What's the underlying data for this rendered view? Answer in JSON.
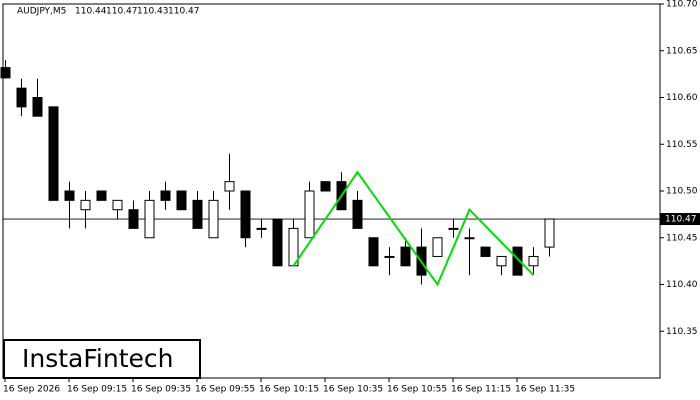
{
  "chart_data": {
    "type": "candlestick",
    "symbol": "AUDJPY,M5",
    "header_ohlc": [
      110.44,
      110.47,
      110.43,
      110.47
    ],
    "categories": [
      "16 Sep 2026",
      null,
      null,
      null,
      "16 Sep 09:15",
      null,
      null,
      null,
      "16 Sep 09:35",
      null,
      null,
      null,
      "16 Sep 09:55",
      null,
      null,
      null,
      "16 Sep 10:15",
      null,
      null,
      null,
      "16 Sep 10:35",
      null,
      null,
      null,
      "16 Sep 10:55",
      null,
      null,
      null,
      "16 Sep 11:15",
      null,
      null,
      null,
      "16 Sep 11:35",
      null,
      null
    ],
    "open": [
      110.632,
      110.61,
      110.6,
      110.59,
      110.5,
      110.48,
      110.5,
      110.48,
      110.48,
      110.45,
      110.5,
      110.5,
      110.49,
      110.45,
      110.5,
      110.5,
      110.46,
      110.47,
      110.42,
      110.45,
      110.51,
      110.51,
      110.49,
      110.45,
      110.43,
      110.44,
      110.44,
      110.43,
      110.46,
      110.45,
      110.44,
      110.42,
      110.44,
      110.42,
      110.44
    ],
    "high": [
      110.64,
      110.62,
      110.62,
      110.59,
      110.51,
      110.5,
      110.5,
      110.49,
      110.49,
      110.5,
      110.51,
      110.5,
      110.5,
      110.5,
      110.54,
      110.5,
      110.47,
      110.47,
      110.47,
      110.51,
      110.51,
      110.52,
      110.5,
      110.45,
      110.44,
      110.45,
      110.46,
      110.45,
      110.47,
      110.46,
      110.44,
      110.43,
      110.44,
      110.44,
      110.47
    ],
    "low": [
      110.62,
      110.58,
      110.58,
      110.49,
      110.46,
      110.46,
      110.49,
      110.47,
      110.46,
      110.45,
      110.48,
      110.48,
      110.46,
      110.45,
      110.48,
      110.44,
      110.45,
      110.42,
      110.42,
      110.45,
      110.5,
      110.48,
      110.46,
      110.42,
      110.41,
      110.42,
      110.4,
      110.43,
      110.45,
      110.41,
      110.43,
      110.41,
      110.41,
      110.41,
      110.43
    ],
    "close": [
      110.621,
      110.59,
      110.58,
      110.49,
      110.49,
      110.49,
      110.49,
      110.49,
      110.46,
      110.49,
      110.49,
      110.48,
      110.46,
      110.49,
      110.51,
      110.45,
      110.46,
      110.42,
      110.46,
      110.5,
      110.5,
      110.48,
      110.46,
      110.42,
      110.43,
      110.42,
      110.41,
      110.45,
      110.46,
      110.45,
      110.43,
      110.43,
      110.41,
      110.43,
      110.47
    ],
    "up_color": "#ffffff",
    "down_color": "#000000",
    "ylim": [
      110.3,
      110.7
    ],
    "yticks": [
      110.35,
      {
        "value": 110.4,
        "label": "110.40"
      },
      110.45,
      {
        "value": 110.5,
        "label": "110.50"
      },
      110.55,
      {
        "value": 110.6,
        "label": "110.60"
      },
      110.65,
      {
        "value": 110.7,
        "label": "110.70"
      }
    ],
    "grid": false,
    "last_price": 110.47,
    "pattern": {
      "color": "#00e000",
      "points": [
        [
          18,
          110.42
        ],
        [
          22,
          110.52
        ],
        [
          27,
          110.4
        ],
        [
          29,
          110.48
        ],
        [
          33,
          110.41
        ]
      ]
    },
    "watermark": "InstaFintech"
  }
}
